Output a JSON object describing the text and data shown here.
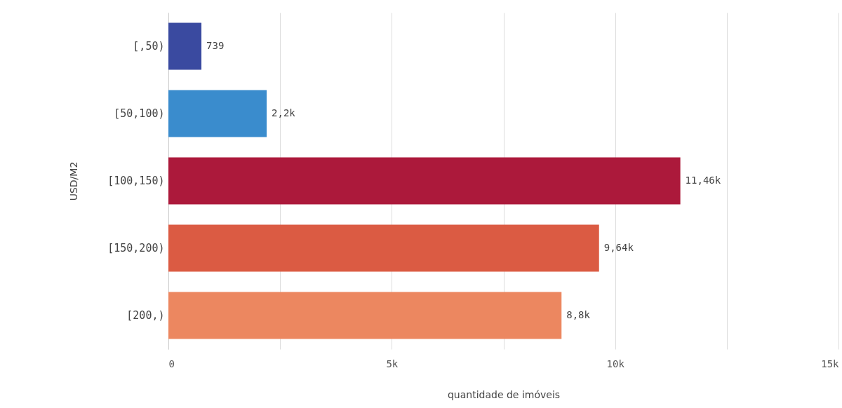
{
  "chart_data": {
    "type": "bar",
    "orientation": "horizontal",
    "xlabel": "quantidade de imóveis",
    "ylabel": "USD/M2",
    "categories": [
      "[,50)",
      "[50,100)",
      "[100,150)",
      "[150,200)",
      "[200,)"
    ],
    "values": [
      739,
      2200,
      11460,
      9640,
      8800
    ],
    "value_labels": [
      "739",
      "2,2k",
      "11,46k",
      "9,64k",
      "8,8k"
    ],
    "colors": [
      "#3a4aa0",
      "#3a8ccd",
      "#ac193b",
      "#db5b43",
      "#ec8760"
    ],
    "xlim": [
      0,
      15000
    ],
    "xticks": [
      0,
      {
        "value": 2500,
        "label": null
      },
      {
        "value": 5000,
        "label": "5k"
      },
      {
        "value": 7500,
        "label": null
      },
      {
        "value": 10000,
        "label": "10k"
      },
      {
        "value": 12500,
        "label": null
      },
      {
        "value": 15000,
        "label": "15k"
      }
    ],
    "grid": "x"
  }
}
